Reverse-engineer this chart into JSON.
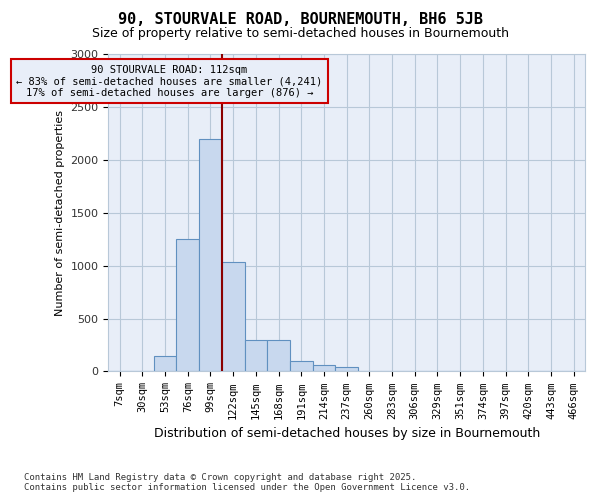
{
  "title_line1": "90, STOURVALE ROAD, BOURNEMOUTH, BH6 5JB",
  "title_line2": "Size of property relative to semi-detached houses in Bournemouth",
  "xlabel": "Distribution of semi-detached houses by size in Bournemouth",
  "ylabel": "Number of semi-detached properties",
  "categories": [
    "7sqm",
    "30sqm",
    "53sqm",
    "76sqm",
    "99sqm",
    "122sqm",
    "145sqm",
    "168sqm",
    "191sqm",
    "214sqm",
    "237sqm",
    "260sqm",
    "283sqm",
    "306sqm",
    "329sqm",
    "351sqm",
    "374sqm",
    "397sqm",
    "420sqm",
    "443sqm",
    "466sqm"
  ],
  "values": [
    0,
    0,
    150,
    1250,
    2200,
    1030,
    300,
    300,
    100,
    60,
    40,
    0,
    0,
    0,
    0,
    0,
    0,
    0,
    0,
    0,
    0
  ],
  "bar_color": "#c8d8ee",
  "bar_edge_color": "#6090c0",
  "vline_color": "#8b0000",
  "vline_x_index": 5,
  "annotation_title": "90 STOURVALE ROAD: 112sqm",
  "annotation_line1": "← 83% of semi-detached houses are smaller (4,241)",
  "annotation_line2": "17% of semi-detached houses are larger (876) →",
  "annotation_box_color": "#cc0000",
  "ylim": [
    0,
    3000
  ],
  "yticks": [
    0,
    500,
    1000,
    1500,
    2000,
    2500,
    3000
  ],
  "footer1": "Contains HM Land Registry data © Crown copyright and database right 2025.",
  "footer2": "Contains public sector information licensed under the Open Government Licence v3.0.",
  "bg_color": "#ffffff",
  "plot_bg_color": "#e8eef8",
  "grid_color": "#b8c8d8"
}
